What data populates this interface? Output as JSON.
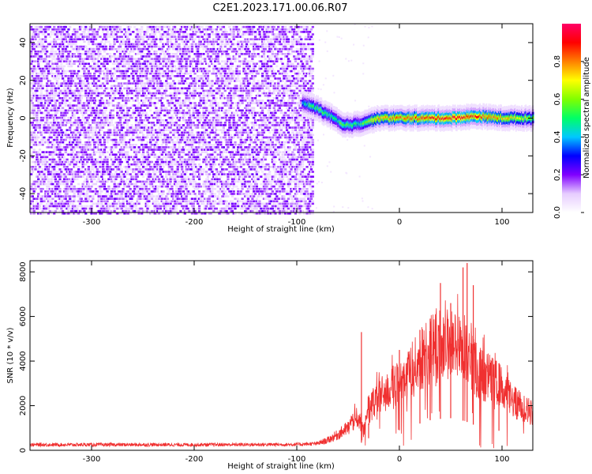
{
  "title": "C2E1.2023.171.00.06.R07",
  "chart_data": [
    {
      "type": "heatmap",
      "xlabel": "Height of straight line (km)",
      "ylabel": "Frequency (Hz)",
      "xlim": [
        -360,
        130
      ],
      "ylim": [
        -50,
        50
      ],
      "xticks": [
        -300,
        -200,
        -100,
        0,
        100
      ],
      "yticks": [
        -40,
        -20,
        0,
        20,
        40
      ],
      "colorbar": {
        "label": "Normalized spectral amplitude",
        "range": [
          0,
          1
        ],
        "ticks": [
          0.0,
          0.2,
          0.4,
          0.6,
          0.8
        ],
        "colors": [
          "#ffffff",
          "#e6ccff",
          "#8000ff",
          "#0000ff",
          "#00c8ff",
          "#00ff66",
          "#80ff00",
          "#ffff00",
          "#ff8000",
          "#ff0000",
          "#ff0066"
        ]
      },
      "noise_region": {
        "x_range": [
          -360,
          -85
        ],
        "freq_range": [
          -50,
          50
        ],
        "amplitude": 0.15
      },
      "signal_track": [
        {
          "x": -95,
          "freq": 8,
          "amp": 0.45
        },
        {
          "x": -80,
          "freq": 5,
          "amp": 0.55
        },
        {
          "x": -65,
          "freq": 0,
          "amp": 0.5
        },
        {
          "x": -55,
          "freq": -4,
          "amp": 0.55
        },
        {
          "x": -40,
          "freq": -3,
          "amp": 0.5
        },
        {
          "x": -20,
          "freq": 0,
          "amp": 0.75
        },
        {
          "x": 0,
          "freq": 0,
          "amp": 0.8
        },
        {
          "x": 25,
          "freq": 0,
          "amp": 0.85
        },
        {
          "x": 50,
          "freq": 0,
          "amp": 0.9
        },
        {
          "x": 75,
          "freq": 1,
          "amp": 0.85
        },
        {
          "x": 100,
          "freq": 0,
          "amp": 0.75
        },
        {
          "x": 130,
          "freq": 0,
          "amp": 0.6
        }
      ],
      "grid": false
    },
    {
      "type": "line",
      "xlabel": "Height of straight line (km)",
      "ylabel": "SNR (10 * v/v)",
      "xlim": [
        -360,
        130
      ],
      "ylim": [
        0,
        8500
      ],
      "xticks": [
        -300,
        -200,
        -100,
        0,
        100
      ],
      "yticks": [
        0,
        2000,
        4000,
        6000,
        8000
      ],
      "grid": false,
      "series": [
        {
          "color": "#f03030",
          "x": [
            -360,
            -300,
            -200,
            -100,
            -80,
            -70,
            -60,
            -50,
            -40,
            -35,
            -30,
            -20,
            -10,
            0,
            10,
            20,
            30,
            40,
            50,
            55,
            60,
            65,
            70,
            75,
            80,
            90,
            100,
            110,
            120,
            130
          ],
          "y": [
            250,
            250,
            250,
            260,
            300,
            450,
            700,
            1000,
            1500,
            900,
            1800,
            2400,
            2700,
            3000,
            3500,
            4000,
            4500,
            4700,
            4800,
            4700,
            4500,
            4300,
            4000,
            3600,
            3400,
            3200,
            2800,
            2200,
            1900,
            1700
          ]
        }
      ],
      "spikes": [
        {
          "x": -37,
          "y": 5300
        },
        {
          "x": -30,
          "y": 1200
        },
        {
          "x": 0,
          "y": 4500
        },
        {
          "x": 20,
          "y": 5400
        },
        {
          "x": 30,
          "y": 5900
        },
        {
          "x": 40,
          "y": 7500
        },
        {
          "x": 50,
          "y": 6600
        },
        {
          "x": 62,
          "y": 8200
        },
        {
          "x": 66,
          "y": 8400
        },
        {
          "x": 72,
          "y": 7400
        },
        {
          "x": 97,
          "y": 3900
        }
      ]
    }
  ]
}
